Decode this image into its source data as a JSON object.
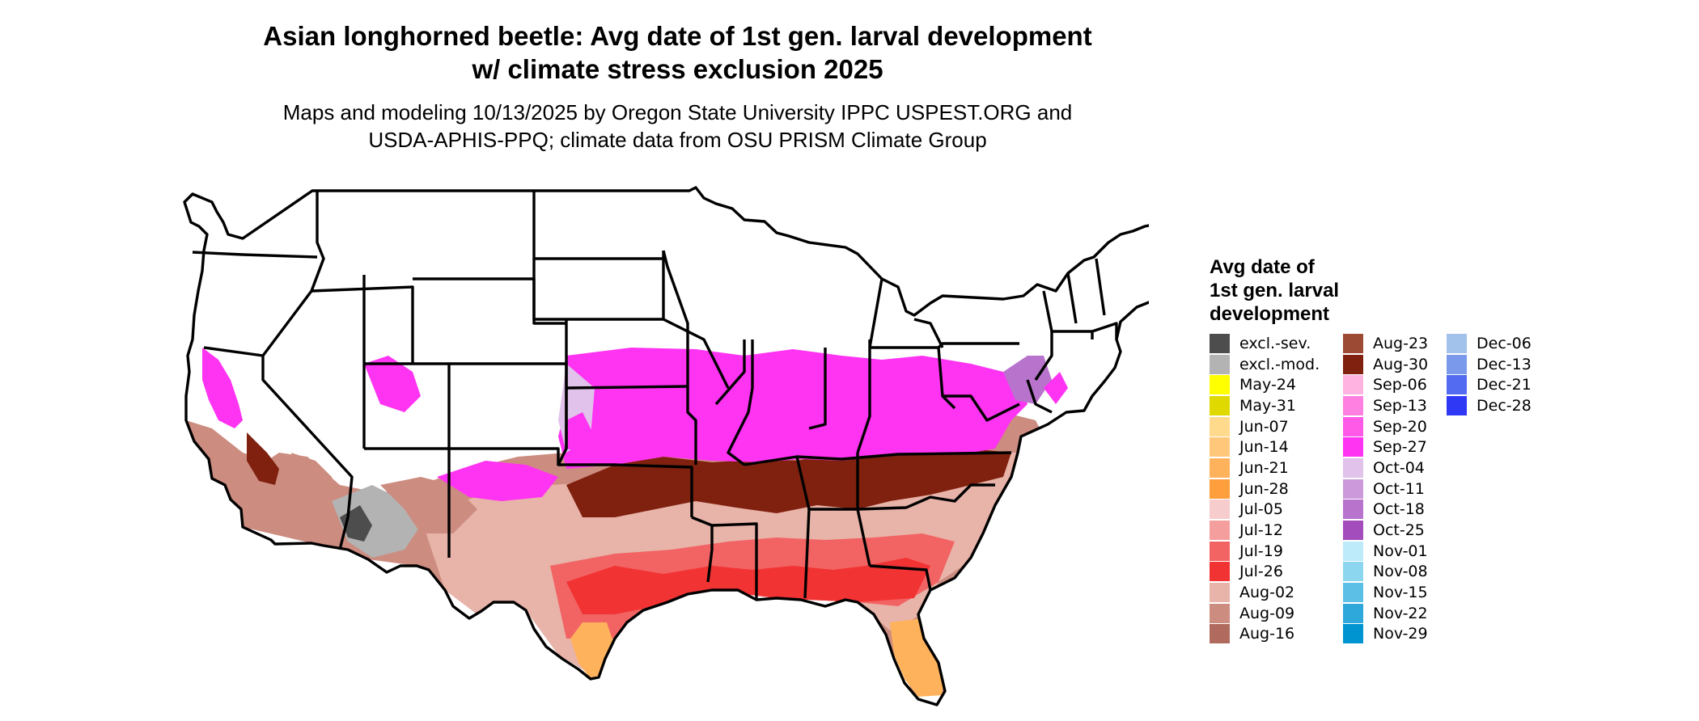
{
  "title_line1": "Asian longhorned beetle: Avg date of 1st gen. larval development",
  "title_line2": "w/ climate stress exclusion 2025",
  "subtitle_line1": "Maps and modeling 10/13/2025 by Oregon State University IPPC USPEST.ORG and",
  "subtitle_line2": "USDA-APHIS-PPQ; climate data from OSU PRISM Climate Group",
  "legend": {
    "title_line1": "Avg date of",
    "title_line2": "1st gen. larval",
    "title_line3": "development",
    "items": [
      {
        "label": "excl.-sev.",
        "color": "#4d4d4d"
      },
      {
        "label": "excl.-mod.",
        "color": "#b3b3b3"
      },
      {
        "label": "May-24",
        "color": "#ffff00"
      },
      {
        "label": "May-31",
        "color": "#e0d900"
      },
      {
        "label": "Jun-07",
        "color": "#ffd98c"
      },
      {
        "label": "Jun-14",
        "color": "#ffc77a"
      },
      {
        "label": "Jun-21",
        "color": "#ffb25c"
      },
      {
        "label": "Jun-28",
        "color": "#ff9e3d"
      },
      {
        "label": "Jul-05",
        "color": "#f7cccc"
      },
      {
        "label": "Jul-12",
        "color": "#f59e9e"
      },
      {
        "label": "Jul-19",
        "color": "#f26363"
      },
      {
        "label": "Jul-26",
        "color": "#f23333"
      },
      {
        "label": "Aug-02",
        "color": "#e8b3a8"
      },
      {
        "label": "Aug-09",
        "color": "#cc8c80"
      },
      {
        "label": "Aug-16",
        "color": "#b06b5e"
      },
      {
        "label": "Aug-23",
        "color": "#9c4a33"
      },
      {
        "label": "Aug-30",
        "color": "#80210f"
      },
      {
        "label": "Sep-06",
        "color": "#ffb3e0"
      },
      {
        "label": "Sep-13",
        "color": "#ff80e0"
      },
      {
        "label": "Sep-20",
        "color": "#ff59e8"
      },
      {
        "label": "Sep-27",
        "color": "#ff33f2"
      },
      {
        "label": "Oct-04",
        "color": "#e0c2eb"
      },
      {
        "label": "Oct-11",
        "color": "#cc99db"
      },
      {
        "label": "Oct-18",
        "color": "#b873cc"
      },
      {
        "label": "Oct-25",
        "color": "#a34dbd"
      },
      {
        "label": "Nov-01",
        "color": "#bdebfa"
      },
      {
        "label": "Nov-08",
        "color": "#8cd6f0"
      },
      {
        "label": "Nov-15",
        "color": "#5cbfe6"
      },
      {
        "label": "Nov-22",
        "color": "#2ea8db"
      },
      {
        "label": "Nov-29",
        "color": "#0094d1"
      },
      {
        "label": "Dec-06",
        "color": "#a3c2eb"
      },
      {
        "label": "Dec-13",
        "color": "#7a99eb"
      },
      {
        "label": "Dec-21",
        "color": "#526bf0"
      },
      {
        "label": "Dec-28",
        "color": "#2e38f5"
      }
    ]
  }
}
